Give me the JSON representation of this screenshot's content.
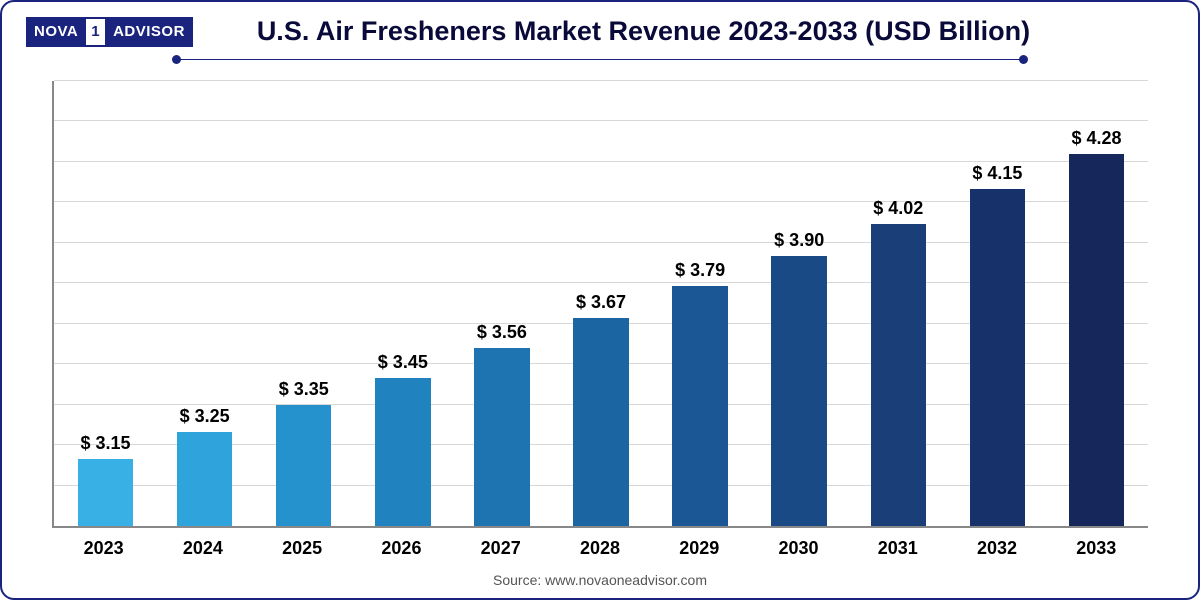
{
  "logo": {
    "left": "NOVA",
    "mid": "1",
    "right": "ADVISOR"
  },
  "title": "U.S. Air Fresheners Market Revenue 2023-2033 (USD Billion)",
  "source": "Source: www.novaoneadvisor.com",
  "chart": {
    "type": "bar",
    "categories": [
      "2023",
      "2024",
      "2025",
      "2026",
      "2027",
      "2028",
      "2029",
      "2030",
      "2031",
      "2032",
      "2033"
    ],
    "values": [
      3.15,
      3.25,
      3.35,
      3.45,
      3.56,
      3.67,
      3.79,
      3.9,
      4.02,
      4.15,
      4.28
    ],
    "value_labels": [
      "$ 3.15",
      "$ 3.25",
      "$ 3.35",
      "$ 3.45",
      "$ 3.56",
      "$ 3.67",
      "$ 3.79",
      "$ 3.90",
      "$ 4.02",
      "$ 4.15",
      "$ 4.28"
    ],
    "bar_colors": [
      "#39b0e5",
      "#2ea3dc",
      "#2592ce",
      "#2083c0",
      "#1e74b1",
      "#1c65a3",
      "#1b5794",
      "#1a4a86",
      "#193e78",
      "#17326a",
      "#16275c"
    ],
    "ylim": [
      2.9,
      4.55
    ],
    "grid_lines": 11,
    "bar_width_pct": 56,
    "background_color": "#ffffff",
    "grid_color": "#d8d8d8",
    "axis_color": "#888888",
    "title_color": "#0a0a3a",
    "title_fontsize": 27,
    "label_fontsize": 18,
    "value_fontsize": 18
  },
  "frame": {
    "border_color": "#1a237e",
    "border_radius": 14
  }
}
